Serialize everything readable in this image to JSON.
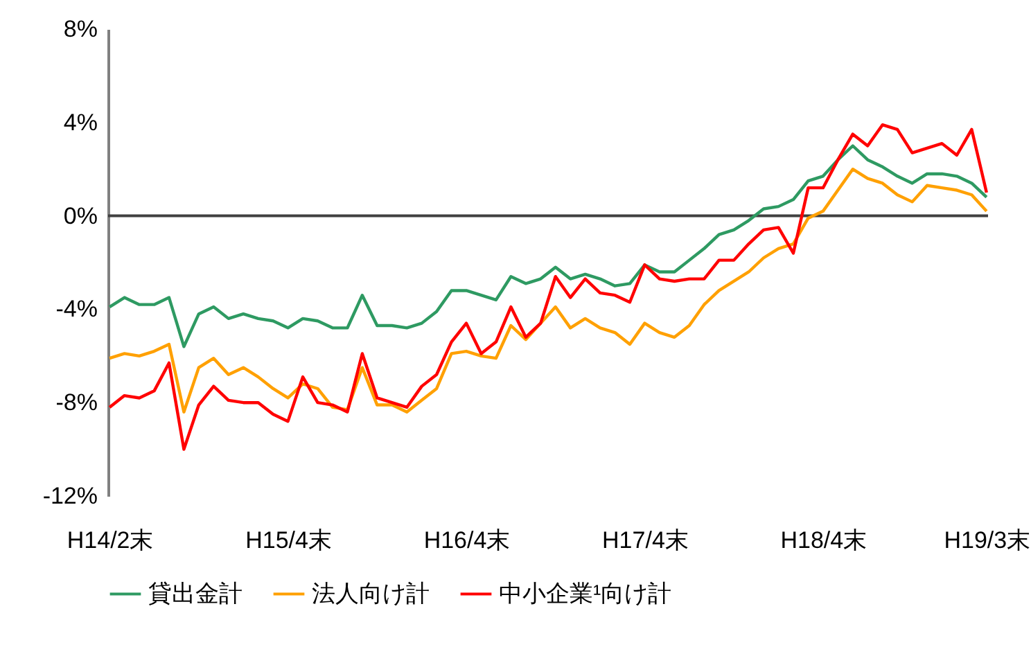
{
  "chart_data": {
    "type": "line",
    "categories": [
      "H14/2末",
      null,
      null,
      null,
      null,
      null,
      null,
      null,
      null,
      null,
      null,
      null,
      "H15/4末",
      null,
      null,
      null,
      null,
      null,
      null,
      null,
      null,
      null,
      null,
      null,
      "H16/4末",
      null,
      null,
      null,
      null,
      null,
      null,
      null,
      null,
      null,
      null,
      null,
      "H17/4末",
      null,
      null,
      null,
      null,
      null,
      null,
      null,
      null,
      null,
      null,
      null,
      "H18/4末",
      null,
      null,
      null,
      null,
      null,
      null,
      null,
      null,
      null,
      null,
      "H19/3末"
    ],
    "series": [
      {
        "name": "貸出金計",
        "color": "#2e9a62",
        "values": [
          -3.9,
          -3.5,
          -3.8,
          -3.8,
          -3.5,
          -5.6,
          -4.2,
          -3.9,
          -4.4,
          -4.2,
          -4.4,
          -4.5,
          -4.8,
          -4.4,
          -4.5,
          -4.8,
          -4.8,
          -3.4,
          -4.7,
          -4.7,
          -4.8,
          -4.6,
          -4.1,
          -3.2,
          -3.2,
          -3.4,
          -3.6,
          -2.6,
          -2.9,
          -2.7,
          -2.2,
          -2.7,
          -2.5,
          -2.7,
          -3.0,
          -2.9,
          -2.1,
          -2.4,
          -2.4,
          -1.9,
          -1.4,
          -0.8,
          -0.6,
          -0.2,
          0.3,
          0.4,
          0.7,
          1.5,
          1.7,
          2.4,
          3.0,
          2.4,
          2.1,
          1.7,
          1.4,
          1.8,
          1.8,
          1.7,
          1.4,
          0.8
        ]
      },
      {
        "name": "法人向け計",
        "color": "#ffa000",
        "values": [
          -6.1,
          -5.9,
          -6.0,
          -5.8,
          -5.5,
          -8.4,
          -6.5,
          -6.1,
          -6.8,
          -6.5,
          -6.9,
          -7.4,
          -7.8,
          -7.2,
          -7.4,
          -8.2,
          -8.3,
          -6.5,
          -8.1,
          -8.1,
          -8.4,
          -7.9,
          -7.4,
          -5.9,
          -5.8,
          -6.0,
          -6.1,
          -4.7,
          -5.3,
          -4.6,
          -3.9,
          -4.8,
          -4.4,
          -4.8,
          -5.0,
          -5.5,
          -4.6,
          -5.0,
          -5.2,
          -4.7,
          -3.8,
          -3.2,
          -2.8,
          -2.4,
          -1.8,
          -1.4,
          -1.2,
          -0.1,
          0.2,
          1.1,
          2.0,
          1.6,
          1.4,
          0.9,
          0.6,
          1.3,
          1.2,
          1.1,
          0.9,
          0.2
        ]
      },
      {
        "name": "中小企業¹向け計",
        "color": "#ff0000",
        "values": [
          -8.2,
          -7.7,
          -7.8,
          -7.5,
          -6.3,
          -10.0,
          -8.1,
          -7.3,
          -7.9,
          -8.0,
          -8.0,
          -8.5,
          -8.8,
          -6.9,
          -8.0,
          -8.1,
          -8.4,
          -5.9,
          -7.8,
          -8.0,
          -8.2,
          -7.3,
          -6.8,
          -5.4,
          -4.6,
          -5.9,
          -5.4,
          -3.9,
          -5.2,
          -4.6,
          -2.6,
          -3.5,
          -2.7,
          -3.3,
          -3.4,
          -3.7,
          -2.1,
          -2.7,
          -2.8,
          -2.7,
          -2.7,
          -1.9,
          -1.9,
          -1.2,
          -0.6,
          -0.5,
          -1.6,
          1.2,
          1.2,
          2.4,
          3.5,
          3.0,
          3.9,
          3.7,
          2.7,
          2.9,
          3.1,
          2.6,
          3.7,
          1.0
        ]
      }
    ],
    "ylim": [
      -12,
      8
    ],
    "yticks": [
      {
        "value": -12,
        "label": "-12%"
      },
      {
        "value": -8,
        "label": "-8%"
      },
      {
        "value": -4,
        "label": "-4%"
      },
      {
        "value": 0,
        "label": "0%"
      },
      {
        "value": 4,
        "label": "4%"
      },
      {
        "value": 8,
        "label": "8%"
      }
    ],
    "ref_lines": [
      {
        "axis": "y",
        "value": 0,
        "color": "#404040"
      }
    ],
    "grid": false,
    "legend": "bottom"
  }
}
